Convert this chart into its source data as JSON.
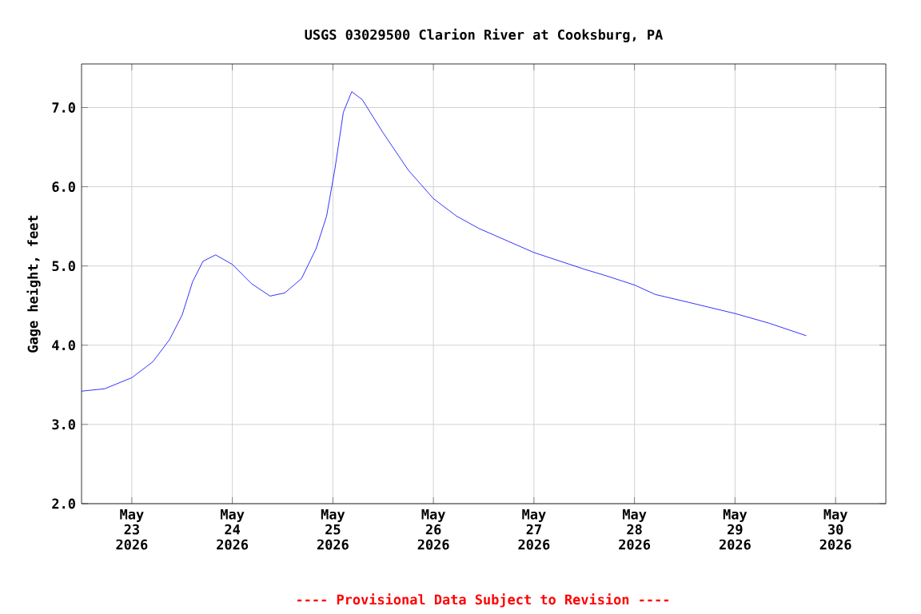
{
  "chart_data": {
    "type": "line",
    "title": "USGS 03029500 Clarion River at Cooksburg, PA",
    "ylabel": "Gage height, feet",
    "x": [
      "2026-05-22T12:00",
      "2026-05-22T17:30",
      "2026-05-23T00:00",
      "2026-05-23T05:00",
      "2026-05-23T09:00",
      "2026-05-23T12:00",
      "2026-05-23T14:30",
      "2026-05-23T17:00",
      "2026-05-23T20:00",
      "2026-05-24T00:00",
      "2026-05-24T04:30",
      "2026-05-24T09:00",
      "2026-05-24T12:30",
      "2026-05-24T16:30",
      "2026-05-24T20:00",
      "2026-05-24T22:30",
      "2026-05-25T00:30",
      "2026-05-25T02:30",
      "2026-05-25T04:30",
      "2026-05-25T07:00",
      "2026-05-25T12:00",
      "2026-05-25T18:00",
      "2026-05-26T00:00",
      "2026-05-26T05:30",
      "2026-05-26T11:00",
      "2026-05-27T00:00",
      "2026-05-27T12:00",
      "2026-05-27T17:00",
      "2026-05-28T00:00",
      "2026-05-28T05:00",
      "2026-05-28T13:00",
      "2026-05-29T00:00",
      "2026-05-29T08:00",
      "2026-05-29T17:00"
    ],
    "values": [
      3.42,
      3.45,
      3.59,
      3.79,
      4.07,
      4.38,
      4.8,
      5.06,
      5.14,
      5.02,
      4.78,
      4.62,
      4.66,
      4.84,
      5.22,
      5.63,
      6.23,
      6.94,
      7.2,
      7.1,
      6.68,
      6.21,
      5.85,
      5.63,
      5.47,
      5.17,
      4.96,
      4.88,
      4.76,
      4.64,
      4.54,
      4.4,
      4.28,
      4.12
    ],
    "color": "#0000ff",
    "marker": "none",
    "grid": true,
    "xlim": [
      "2026-05-22T12:00",
      "2026-05-30T12:00"
    ],
    "xticks": [
      {
        "value": "2026-05-23",
        "label": "May 23 2026"
      },
      {
        "value": "2026-05-24",
        "label": "May 24 2026"
      },
      {
        "value": "2026-05-25",
        "label": "May 25 2026"
      },
      {
        "value": "2026-05-26",
        "label": "May 26 2026"
      },
      {
        "value": "2026-05-27",
        "label": "May 27 2026"
      },
      {
        "value": "2026-05-28",
        "label": "May 28 2026"
      },
      {
        "value": "2026-05-29",
        "label": "May 29 2026"
      },
      {
        "value": "2026-05-30",
        "label": "May 30 2026"
      }
    ],
    "ylim": [
      2,
      7.55
    ],
    "yticks": [
      {
        "value": 2,
        "label": "2.0"
      },
      {
        "value": 3,
        "label": "3.0"
      },
      {
        "value": 4,
        "label": "4.0"
      },
      {
        "value": 5,
        "label": "5.0"
      },
      {
        "value": 6,
        "label": "6.0"
      },
      {
        "value": 7,
        "label": "7.0"
      }
    ],
    "annotations": [
      "---- Provisional Data Subject to Revision ----"
    ]
  }
}
